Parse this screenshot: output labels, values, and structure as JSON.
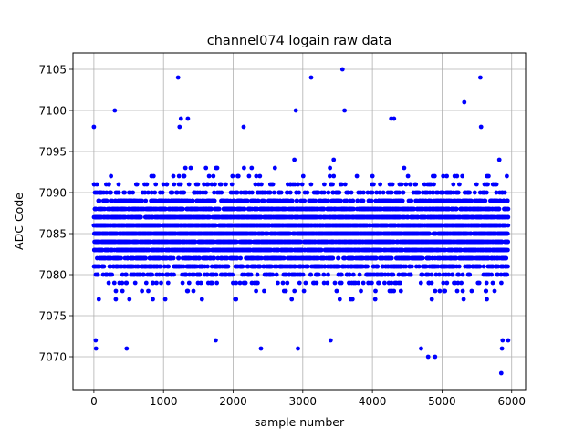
{
  "chart_data": {
    "type": "scatter",
    "title": "channel074 logain raw data",
    "xlabel": "sample number",
    "ylabel": "ADC Code",
    "xlim": [
      -300,
      6200
    ],
    "ylim": [
      7066.0,
      7107.0
    ],
    "xticks": [
      0,
      1000,
      2000,
      3000,
      4000,
      5000,
      6000
    ],
    "yticks": [
      7070,
      7075,
      7080,
      7085,
      7090,
      7095,
      7100,
      7105
    ],
    "grid": true,
    "marker": "circle",
    "color": "#0000ff",
    "x_range": [
      0,
      5950
    ],
    "y_range": [
      7068,
      7105
    ],
    "sample_count": 6000,
    "y_distribution": {
      "center": 7085,
      "dense_band": [
        7077,
        7093
      ]
    },
    "outliers": [
      {
        "x": 0,
        "y": 7098
      },
      {
        "x": 30,
        "y": 7071
      },
      {
        "x": 25,
        "y": 7072
      },
      {
        "x": 300,
        "y": 7100
      },
      {
        "x": 470,
        "y": 7071
      },
      {
        "x": 1210,
        "y": 7104
      },
      {
        "x": 1230,
        "y": 7098
      },
      {
        "x": 1250,
        "y": 7099
      },
      {
        "x": 1350,
        "y": 7099
      },
      {
        "x": 1750,
        "y": 7072
      },
      {
        "x": 2150,
        "y": 7098
      },
      {
        "x": 2400,
        "y": 7071
      },
      {
        "x": 2900,
        "y": 7100
      },
      {
        "x": 2930,
        "y": 7071
      },
      {
        "x": 3120,
        "y": 7104
      },
      {
        "x": 3400,
        "y": 7072
      },
      {
        "x": 3570,
        "y": 7105
      },
      {
        "x": 3600,
        "y": 7100
      },
      {
        "x": 4270,
        "y": 7099
      },
      {
        "x": 4310,
        "y": 7099
      },
      {
        "x": 4700,
        "y": 7071
      },
      {
        "x": 4800,
        "y": 7070
      },
      {
        "x": 4900,
        "y": 7070
      },
      {
        "x": 5320,
        "y": 7101
      },
      {
        "x": 5550,
        "y": 7104
      },
      {
        "x": 5560,
        "y": 7098
      },
      {
        "x": 5850,
        "y": 7068
      },
      {
        "x": 5860,
        "y": 7071
      },
      {
        "x": 5870,
        "y": 7072
      },
      {
        "x": 5950,
        "y": 7072
      }
    ]
  }
}
